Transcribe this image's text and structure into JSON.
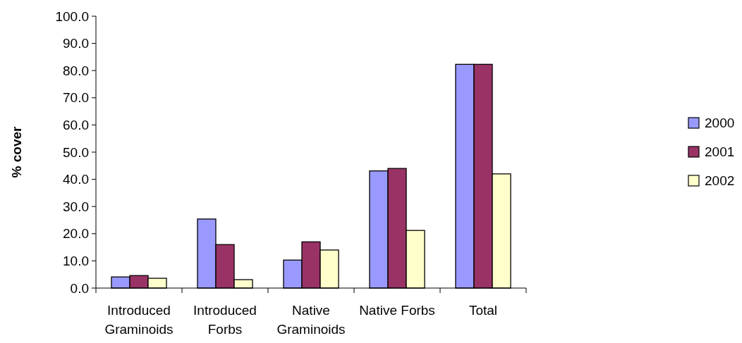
{
  "chart_data": {
    "type": "bar",
    "ylabel": "% cover",
    "categories": [
      "Introduced Graminoids",
      "Introduced Forbs",
      "Native Graminoids",
      "Native Forbs",
      "Total"
    ],
    "series": [
      {
        "name": "2000",
        "color": "#9999ff",
        "values": [
          4.1,
          25.4,
          10.3,
          43.1,
          82.3
        ]
      },
      {
        "name": "2001",
        "color": "#993366",
        "values": [
          4.6,
          16.0,
          17.0,
          44.0,
          82.3
        ]
      },
      {
        "name": "2002",
        "color": "#ffffcc",
        "values": [
          3.6,
          3.1,
          14.0,
          21.2,
          42.0
        ]
      }
    ],
    "ylim": [
      0,
      100
    ],
    "yticks": [
      {
        "value": 0,
        "label": "0.0"
      },
      {
        "value": 10,
        "label": "10.0"
      },
      {
        "value": 20,
        "label": "20.0"
      },
      {
        "value": 30,
        "label": "30.0"
      },
      {
        "value": 40,
        "label": "40.0"
      },
      {
        "value": 50,
        "label": "50.0"
      },
      {
        "value": 60,
        "label": "60.0"
      },
      {
        "value": 70,
        "label": "70.0"
      },
      {
        "value": 80,
        "label": "80.0"
      },
      {
        "value": 90,
        "label": "90.0"
      },
      {
        "value": 100,
        "label": "100.0"
      }
    ],
    "grid": false,
    "legend": "right"
  }
}
